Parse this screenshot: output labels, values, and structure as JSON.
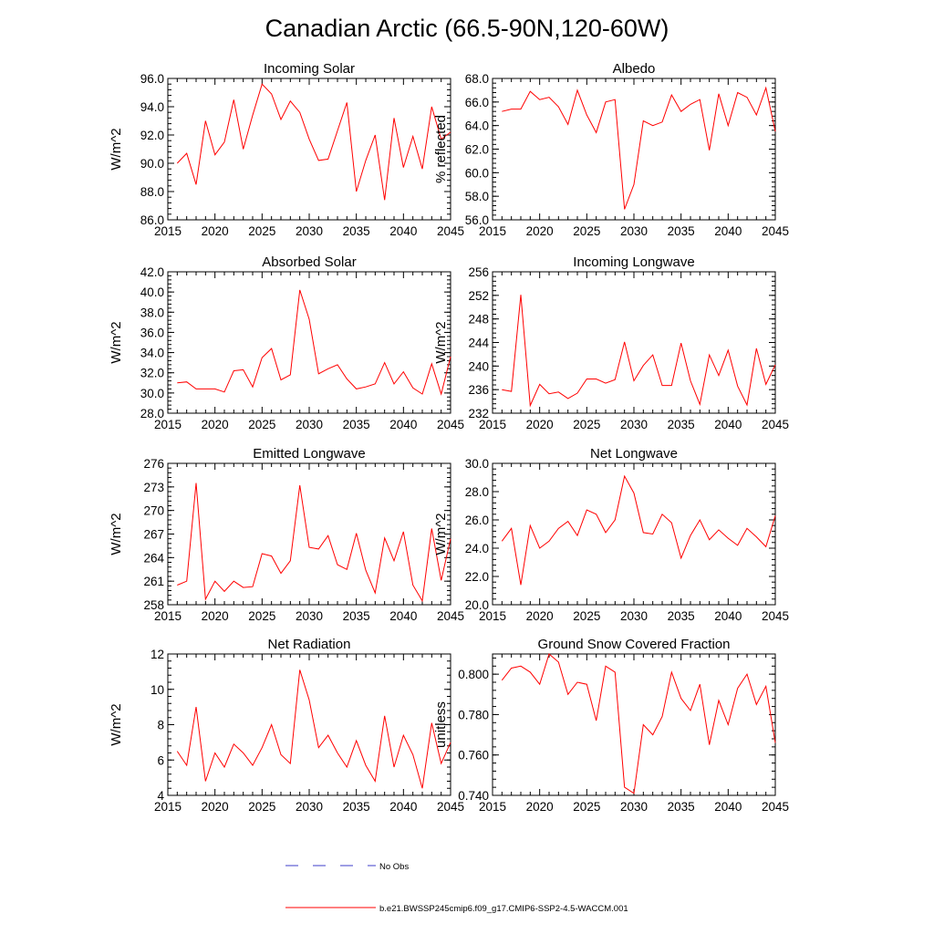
{
  "figure": {
    "title": "Canadian Arctic (66.5-90N,120-60W)"
  },
  "legend": {
    "obs_label": "No Obs",
    "model_label": "b.e21.BWSSP245cmip6.f09_g17.CMIP6-SSP2-4.5-WACCM.001",
    "obs_color": "#3c3cc8",
    "model_color": "#ff0000"
  },
  "chart_data": [
    {
      "type": "line",
      "title": "Incoming Solar",
      "xlabel": "",
      "ylabel": "W/m^2",
      "xlim": [
        2015,
        2045
      ],
      "ylim": [
        86.0,
        96.0
      ],
      "xticks": [
        2015,
        2020,
        2025,
        2030,
        2035,
        2040,
        2045
      ],
      "yticks": [
        86.0,
        88.0,
        90.0,
        92.0,
        94.0,
        96.0
      ],
      "tick_labels_y": [
        "86.0",
        "88.0",
        "90.0",
        "92.0",
        "94.0",
        "96.0"
      ],
      "series": [
        {
          "name": "b.e21.BWSSP245cmip6.f09_g17.CMIP6-SSP2-4.5-WACCM.001",
          "x": [
            2016,
            2017,
            2018,
            2019,
            2020,
            2021,
            2022,
            2023,
            2024,
            2025,
            2026,
            2027,
            2028,
            2029,
            2030,
            2031,
            2032,
            2033,
            2034,
            2035,
            2036,
            2037,
            2038,
            2039,
            2040,
            2041,
            2042,
            2043,
            2044,
            2045
          ],
          "values": [
            90.0,
            90.7,
            88.5,
            93.0,
            90.6,
            91.5,
            94.5,
            91.0,
            93.4,
            95.6,
            94.9,
            93.1,
            94.4,
            93.6,
            91.7,
            90.2,
            90.3,
            92.3,
            94.3,
            88.0,
            90.2,
            92.0,
            87.4,
            93.2,
            89.7,
            91.9,
            89.6,
            94.0,
            91.7,
            92.2
          ]
        }
      ]
    },
    {
      "type": "line",
      "title": "Albedo",
      "xlabel": "",
      "ylabel": "% reflected",
      "xlim": [
        2015,
        2045
      ],
      "ylim": [
        56.0,
        68.0
      ],
      "xticks": [
        2015,
        2020,
        2025,
        2030,
        2035,
        2040,
        2045
      ],
      "yticks": [
        56.0,
        58.0,
        60.0,
        62.0,
        64.0,
        66.0,
        68.0
      ],
      "tick_labels_y": [
        "56.0",
        "58.0",
        "60.0",
        "62.0",
        "64.0",
        "66.0",
        "68.0"
      ],
      "series": [
        {
          "name": "b.e21.BWSSP245cmip6.f09_g17.CMIP6-SSP2-4.5-WACCM.001",
          "x": [
            2016,
            2017,
            2018,
            2019,
            2020,
            2021,
            2022,
            2023,
            2024,
            2025,
            2026,
            2027,
            2028,
            2029,
            2030,
            2031,
            2032,
            2033,
            2034,
            2035,
            2036,
            2037,
            2038,
            2039,
            2040,
            2041,
            2042,
            2043,
            2044,
            2045
          ],
          "values": [
            65.2,
            65.4,
            65.4,
            66.9,
            66.2,
            66.4,
            65.6,
            64.1,
            67.0,
            64.9,
            63.4,
            66.0,
            66.2,
            56.9,
            59.0,
            64.4,
            64.0,
            64.3,
            66.6,
            65.2,
            65.8,
            66.2,
            61.9,
            66.7,
            64.0,
            66.8,
            66.4,
            64.9,
            67.2,
            63.5
          ]
        }
      ]
    },
    {
      "type": "line",
      "title": "Absorbed Solar",
      "xlabel": "",
      "ylabel": "W/m^2",
      "xlim": [
        2015,
        2045
      ],
      "ylim": [
        28.0,
        42.0
      ],
      "xticks": [
        2015,
        2020,
        2025,
        2030,
        2035,
        2040,
        2045
      ],
      "yticks": [
        28.0,
        30.0,
        32.0,
        34.0,
        36.0,
        38.0,
        40.0,
        42.0
      ],
      "tick_labels_y": [
        "28.0",
        "30.0",
        "32.0",
        "34.0",
        "36.0",
        "38.0",
        "40.0",
        "42.0"
      ],
      "series": [
        {
          "name": "b.e21.BWSSP245cmip6.f09_g17.CMIP6-SSP2-4.5-WACCM.001",
          "x": [
            2016,
            2017,
            2018,
            2019,
            2020,
            2021,
            2022,
            2023,
            2024,
            2025,
            2026,
            2027,
            2028,
            2029,
            2030,
            2031,
            2032,
            2033,
            2034,
            2035,
            2036,
            2037,
            2038,
            2039,
            2040,
            2041,
            2042,
            2043,
            2044,
            2045
          ],
          "values": [
            31.0,
            31.1,
            30.4,
            30.4,
            30.4,
            30.1,
            32.2,
            32.3,
            30.6,
            33.5,
            34.4,
            31.3,
            31.8,
            40.2,
            37.3,
            31.9,
            32.4,
            32.8,
            31.4,
            30.4,
            30.6,
            30.9,
            33.0,
            30.9,
            32.1,
            30.5,
            29.9,
            32.9,
            29.9,
            33.6
          ]
        }
      ]
    },
    {
      "type": "line",
      "title": "Incoming Longwave",
      "xlabel": "",
      "ylabel": "W/m^2",
      "xlim": [
        2015,
        2045
      ],
      "ylim": [
        232,
        256
      ],
      "xticks": [
        2015,
        2020,
        2025,
        2030,
        2035,
        2040,
        2045
      ],
      "yticks": [
        232,
        236,
        240,
        244,
        248,
        252,
        256
      ],
      "tick_labels_y": [
        "232",
        "236",
        "240",
        "244",
        "248",
        "252",
        "256"
      ],
      "series": [
        {
          "name": "b.e21.BWSSP245cmip6.f09_g17.CMIP6-SSP2-4.5-WACCM.001",
          "x": [
            2016,
            2017,
            2018,
            2019,
            2020,
            2021,
            2022,
            2023,
            2024,
            2025,
            2026,
            2027,
            2028,
            2029,
            2030,
            2031,
            2032,
            2033,
            2034,
            2035,
            2036,
            2037,
            2038,
            2039,
            2040,
            2041,
            2042,
            2043,
            2044,
            2045
          ],
          "values": [
            236.0,
            235.7,
            252.1,
            233.3,
            236.9,
            235.3,
            235.6,
            234.5,
            235.4,
            237.8,
            237.8,
            237.1,
            237.7,
            244.1,
            237.5,
            240.1,
            241.9,
            236.7,
            236.7,
            243.9,
            237.5,
            233.5,
            241.9,
            238.4,
            242.7,
            236.6,
            233.4,
            243.0,
            236.9,
            240.2
          ]
        }
      ]
    },
    {
      "type": "line",
      "title": "Emitted Longwave",
      "xlabel": "",
      "ylabel": "W/m^2",
      "xlim": [
        2015,
        2045
      ],
      "ylim": [
        258,
        276
      ],
      "xticks": [
        2015,
        2020,
        2025,
        2030,
        2035,
        2040,
        2045
      ],
      "yticks": [
        258,
        261,
        264,
        267,
        270,
        273,
        276
      ],
      "tick_labels_y": [
        "258",
        "261",
        "264",
        "267",
        "270",
        "273",
        "276"
      ],
      "series": [
        {
          "name": "b.e21.BWSSP245cmip6.f09_g17.CMIP6-SSP2-4.5-WACCM.001",
          "x": [
            2016,
            2017,
            2018,
            2019,
            2020,
            2021,
            2022,
            2023,
            2024,
            2025,
            2026,
            2027,
            2028,
            2029,
            2030,
            2031,
            2032,
            2033,
            2034,
            2035,
            2036,
            2037,
            2038,
            2039,
            2040,
            2041,
            2042,
            2043,
            2044,
            2045
          ],
          "values": [
            260.5,
            261.0,
            273.5,
            258.7,
            261.0,
            259.7,
            261.0,
            260.2,
            260.3,
            264.5,
            264.2,
            262.0,
            263.6,
            273.2,
            265.3,
            265.1,
            266.8,
            263.1,
            262.5,
            267.1,
            262.4,
            259.5,
            266.5,
            263.6,
            267.3,
            260.5,
            258.5,
            267.7,
            261.1,
            266.4
          ]
        }
      ]
    },
    {
      "type": "line",
      "title": "Net Longwave",
      "xlabel": "",
      "ylabel": "W/m^2",
      "xlim": [
        2015,
        2045
      ],
      "ylim": [
        20.0,
        30.0
      ],
      "xticks": [
        2015,
        2020,
        2025,
        2030,
        2035,
        2040,
        2045
      ],
      "yticks": [
        20.0,
        22.0,
        24.0,
        26.0,
        28.0,
        30.0
      ],
      "tick_labels_y": [
        "20.0",
        "22.0",
        "24.0",
        "26.0",
        "28.0",
        "30.0"
      ],
      "series": [
        {
          "name": "b.e21.BWSSP245cmip6.f09_g17.CMIP6-SSP2-4.5-WACCM.001",
          "x": [
            2016,
            2017,
            2018,
            2019,
            2020,
            2021,
            2022,
            2023,
            2024,
            2025,
            2026,
            2027,
            2028,
            2029,
            2030,
            2031,
            2032,
            2033,
            2034,
            2035,
            2036,
            2037,
            2038,
            2039,
            2040,
            2041,
            2042,
            2043,
            2044,
            2045
          ],
          "values": [
            24.5,
            25.4,
            21.4,
            25.6,
            24.0,
            24.5,
            25.4,
            25.9,
            24.9,
            26.7,
            26.4,
            25.1,
            26.0,
            29.1,
            27.9,
            25.1,
            25.0,
            26.4,
            25.8,
            23.3,
            24.9,
            26.0,
            24.6,
            25.3,
            24.7,
            24.2,
            25.4,
            24.8,
            24.1,
            26.3
          ]
        }
      ]
    },
    {
      "type": "line",
      "title": "Net Radiation",
      "xlabel": "",
      "ylabel": "W/m^2",
      "xlim": [
        2015,
        2045
      ],
      "ylim": [
        4,
        12
      ],
      "xticks": [
        2015,
        2020,
        2025,
        2030,
        2035,
        2040,
        2045
      ],
      "yticks": [
        4,
        6,
        8,
        10,
        12
      ],
      "tick_labels_y": [
        "4",
        "6",
        "8",
        "10",
        "12"
      ],
      "series": [
        {
          "name": "b.e21.BWSSP245cmip6.f09_g17.CMIP6-SSP2-4.5-WACCM.001",
          "x": [
            2016,
            2017,
            2018,
            2019,
            2020,
            2021,
            2022,
            2023,
            2024,
            2025,
            2026,
            2027,
            2028,
            2029,
            2030,
            2031,
            2032,
            2033,
            2034,
            2035,
            2036,
            2037,
            2038,
            2039,
            2040,
            2041,
            2042,
            2043,
            2044,
            2045
          ],
          "values": [
            6.5,
            5.7,
            9.0,
            4.8,
            6.4,
            5.6,
            6.9,
            6.4,
            5.7,
            6.7,
            8.0,
            6.3,
            5.8,
            11.1,
            9.4,
            6.7,
            7.4,
            6.4,
            5.6,
            7.1,
            5.7,
            4.8,
            8.5,
            5.6,
            7.4,
            6.3,
            4.4,
            8.1,
            5.8,
            7.0
          ]
        }
      ]
    },
    {
      "type": "line",
      "title": "Ground Snow Covered Fraction",
      "xlabel": "",
      "ylabel": "unitless",
      "xlim": [
        2015,
        2045
      ],
      "ylim": [
        0.74,
        0.81
      ],
      "xticks": [
        2015,
        2020,
        2025,
        2030,
        2035,
        2040,
        2045
      ],
      "yticks": [
        0.74,
        0.76,
        0.78,
        0.8
      ],
      "tick_labels_y": [
        "0.740",
        "0.760",
        "0.780",
        "0.800"
      ],
      "series": [
        {
          "name": "b.e21.BWSSP245cmip6.f09_g17.CMIP6-SSP2-4.5-WACCM.001",
          "x": [
            2016,
            2017,
            2018,
            2019,
            2020,
            2021,
            2022,
            2023,
            2024,
            2025,
            2026,
            2027,
            2028,
            2029,
            2030,
            2031,
            2032,
            2033,
            2034,
            2035,
            2036,
            2037,
            2038,
            2039,
            2040,
            2041,
            2042,
            2043,
            2044,
            2045
          ],
          "values": [
            0.797,
            0.803,
            0.804,
            0.801,
            0.795,
            0.81,
            0.806,
            0.79,
            0.796,
            0.795,
            0.777,
            0.804,
            0.801,
            0.744,
            0.741,
            0.775,
            0.77,
            0.779,
            0.801,
            0.788,
            0.782,
            0.795,
            0.765,
            0.787,
            0.775,
            0.793,
            0.8,
            0.785,
            0.794,
            0.766
          ]
        }
      ]
    }
  ]
}
